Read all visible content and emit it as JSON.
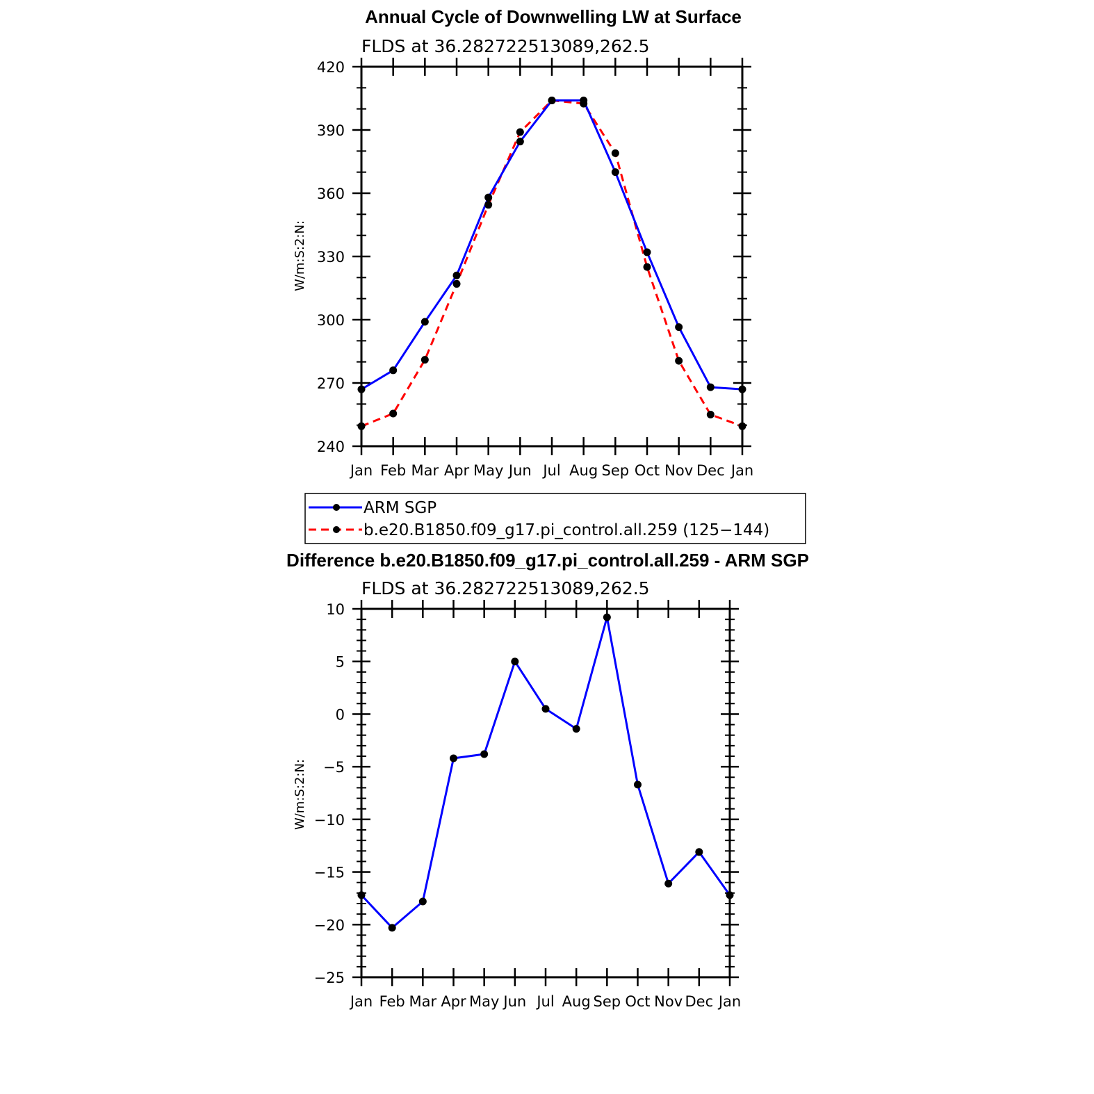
{
  "chart_data": [
    {
      "type": "line",
      "title": "Annual Cycle of Downwelling LW at Surface",
      "subtitle": "FLDS at 36.282722513089,262.5",
      "ylabel": "W/m:S:2:N:",
      "xlabel": "",
      "categories": [
        "Jan",
        "Feb",
        "Mar",
        "Apr",
        "May",
        "Jun",
        "Jul",
        "Aug",
        "Sep",
        "Oct",
        "Nov",
        "Dec",
        "Jan"
      ],
      "ylim": [
        240,
        420
      ],
      "yticks": [
        "240",
        "270",
        "300",
        "330",
        "360",
        "390",
        "420"
      ],
      "series": [
        {
          "name": "ARM SGP",
          "color": "#0000ff",
          "dash": "solid",
          "values": [
            267,
            276,
            299,
            321,
            358,
            384.5,
            404,
            404,
            370,
            332,
            296.5,
            268,
            267
          ]
        },
        {
          "name": "b.e20.B1850.f09_g17.pi_control.all.259 (125−144)",
          "color": "#ff0000",
          "dash": "dashed",
          "values": [
            249.5,
            255.5,
            281,
            317,
            354.5,
            389,
            404,
            402.5,
            379,
            325,
            280.5,
            255,
            249.5
          ]
        }
      ],
      "legend": "below"
    },
    {
      "type": "line",
      "title": "Difference b.e20.B1850.f09_g17.pi_control.all.259 - ARM SGP",
      "subtitle": "FLDS at 36.282722513089,262.5",
      "ylabel": "W/m:S:2:N:",
      "xlabel": "",
      "categories": [
        "Jan",
        "Feb",
        "Mar",
        "Apr",
        "May",
        "Jun",
        "Jul",
        "Aug",
        "Sep",
        "Oct",
        "Nov",
        "Dec",
        "Jan"
      ],
      "ylim": [
        -25,
        10
      ],
      "yticks": [
        "−25",
        "−20",
        "−15",
        "−10",
        "−5",
        "0",
        "5",
        "10"
      ],
      "series": [
        {
          "color": "#0000ff",
          "dash": "solid",
          "values": [
            -17.2,
            -20.3,
            -17.8,
            -4.2,
            -3.8,
            5,
            0.5,
            -1.4,
            9.2,
            -6.7,
            -16.1,
            -13.1,
            -17.2
          ]
        }
      ]
    }
  ]
}
